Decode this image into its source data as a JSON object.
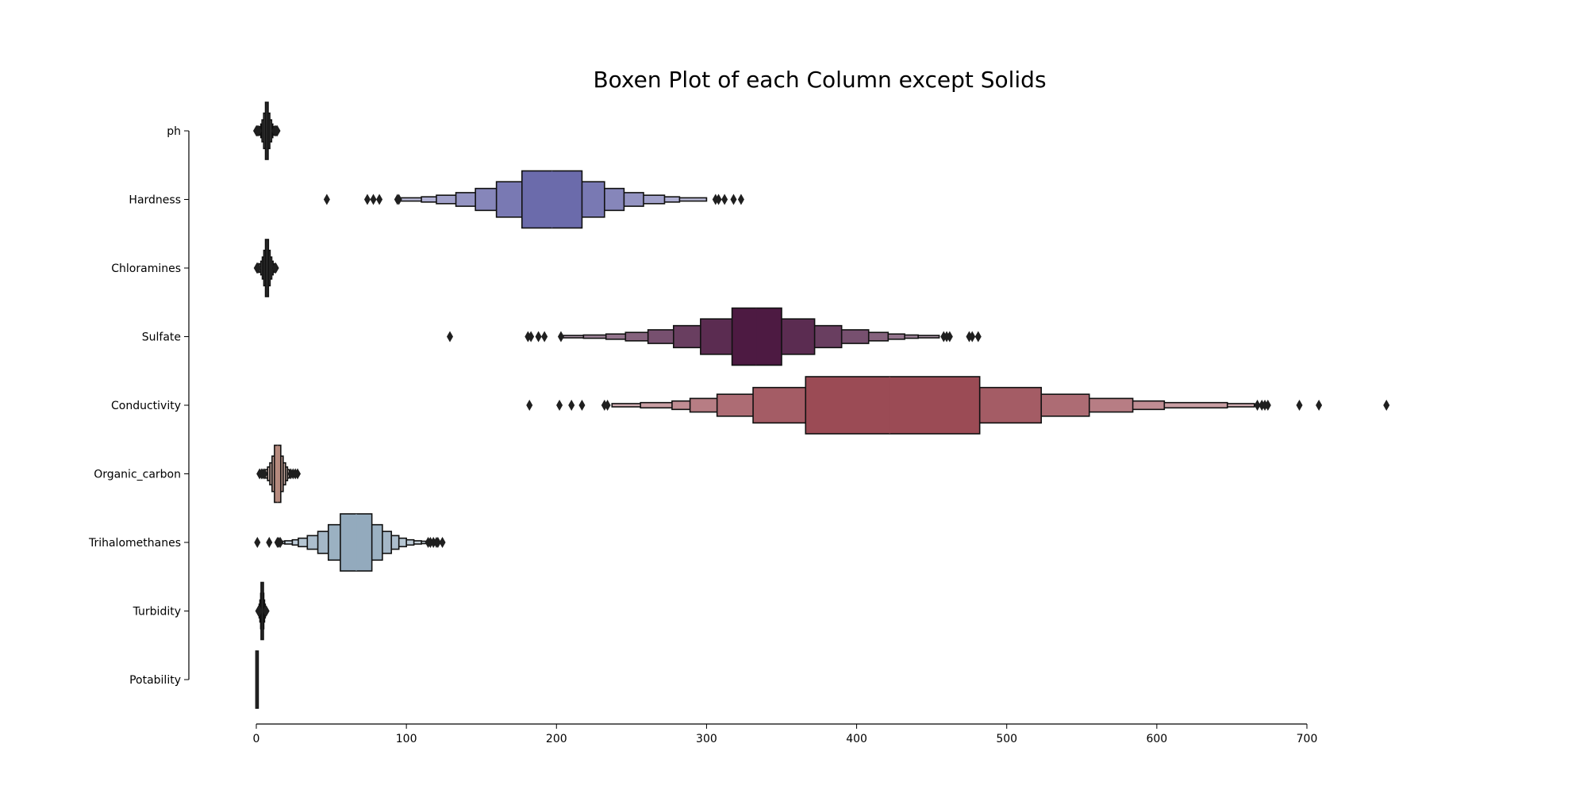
{
  "chart_data": {
    "type": "boxen",
    "title": "Boxen Plot of each Column except Solids",
    "xlabel": "",
    "ylabel": "",
    "xlim": [
      0,
      700
    ],
    "xticks": [
      0,
      100,
      200,
      300,
      400,
      500,
      600,
      700
    ],
    "grid": false,
    "orientation": "horizontal",
    "series": [
      {
        "name": "ph",
        "color": "#2a2a2a",
        "median": 7.0,
        "boxes": [
          [
            6.1,
            7.9
          ],
          [
            4.9,
            9.0
          ],
          [
            3.8,
            10.2
          ],
          [
            3.0,
            11.0
          ],
          [
            2.2,
            11.8
          ]
        ],
        "outliers": [
          0.0,
          0.2,
          0.5,
          0.9,
          1.2,
          1.6,
          12.2,
          12.6,
          13.0,
          13.5,
          13.9,
          14.0
        ]
      },
      {
        "name": "Hardness",
        "color": "#6b6bab",
        "median": 197,
        "boxes": [
          [
            177,
            217
          ],
          [
            160,
            232
          ],
          [
            146,
            245
          ],
          [
            133,
            258
          ],
          [
            120,
            272
          ],
          [
            110,
            282
          ],
          [
            95,
            300
          ]
        ],
        "outliers": [
          47,
          74,
          78,
          82,
          94,
          95,
          306,
          308,
          312,
          318,
          323
        ]
      },
      {
        "name": "Chloramines",
        "color": "#2a2a2a",
        "median": 7.1,
        "boxes": [
          [
            6.1,
            8.1
          ],
          [
            5.0,
            9.2
          ],
          [
            4.0,
            10.3
          ],
          [
            3.0,
            11.2
          ],
          [
            2.0,
            12.0
          ]
        ],
        "outliers": [
          0.4,
          0.8,
          1.2,
          12.5,
          13.0
        ]
      },
      {
        "name": "Sulfate",
        "color": "#4d1a42",
        "median": 333,
        "boxes": [
          [
            317,
            350
          ],
          [
            296,
            372
          ],
          [
            278,
            390
          ],
          [
            261,
            408
          ],
          [
            246,
            421
          ],
          [
            233,
            432
          ],
          [
            218,
            441
          ],
          [
            204,
            455
          ]
        ],
        "outliers": [
          129,
          181,
          183,
          188,
          192,
          203,
          458,
          460,
          462,
          475,
          477,
          481
        ]
      },
      {
        "name": "Conductivity",
        "color": "#9b4b55",
        "median": 422,
        "boxes": [
          [
            366,
            482
          ],
          [
            331,
            523
          ],
          [
            307,
            555
          ],
          [
            289,
            584
          ],
          [
            277,
            605
          ],
          [
            256,
            647
          ],
          [
            237,
            665
          ]
        ],
        "outliers": [
          182,
          202,
          210,
          217,
          232,
          234,
          667,
          670,
          672,
          674,
          695,
          708,
          753
        ]
      },
      {
        "name": "Organic_carbon",
        "color": "#b68a7e",
        "median": 14.2,
        "boxes": [
          [
            12.1,
            16.3
          ],
          [
            10.5,
            17.9
          ],
          [
            9.0,
            19.5
          ],
          [
            7.5,
            20.8
          ],
          [
            6.0,
            22.0
          ]
        ],
        "outliers": [
          2.2,
          3.5,
          4.5,
          5.5,
          23.0,
          24.5,
          26.0,
          27.5
        ]
      },
      {
        "name": "Trihalomethanes",
        "color": "#93aabd",
        "median": 66.6,
        "boxes": [
          [
            56,
            77
          ],
          [
            48,
            84
          ],
          [
            41,
            90
          ],
          [
            34,
            95
          ],
          [
            28,
            100
          ],
          [
            24,
            105
          ],
          [
            19,
            110
          ],
          [
            16,
            115
          ]
        ],
        "outliers": [
          0.7,
          8.6,
          14.1,
          15.0,
          16.0,
          114.5,
          116,
          118,
          120,
          121,
          124
        ]
      },
      {
        "name": "Turbidity",
        "color": "#2a2a2a",
        "median": 3.95,
        "boxes": [
          [
            3.4,
            4.5
          ],
          [
            2.9,
            5.0
          ],
          [
            2.4,
            5.5
          ],
          [
            1.9,
            6.0
          ],
          [
            1.5,
            6.4
          ]
        ],
        "outliers": [
          1.4,
          1.6,
          1.8,
          2.0,
          6.2,
          6.5,
          6.7
        ]
      },
      {
        "name": "Potability",
        "color": "#2a2a2a",
        "median": 0,
        "boxes": [
          [
            0,
            1
          ]
        ],
        "outliers": []
      }
    ]
  }
}
